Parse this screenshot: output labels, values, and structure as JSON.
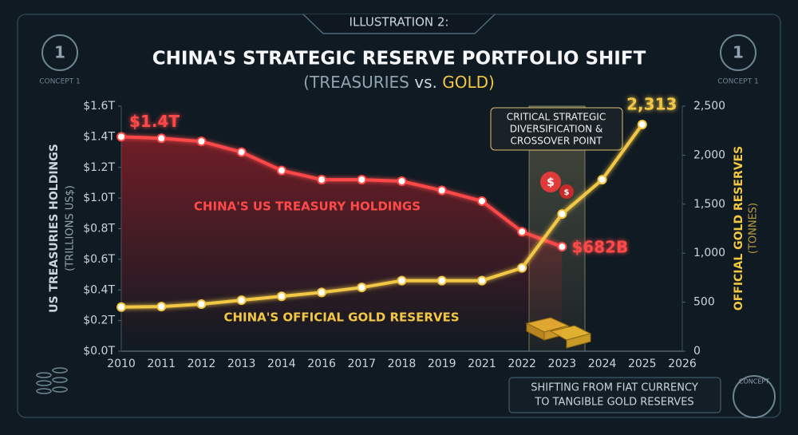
{
  "chart_data": {
    "type": "line",
    "kicker": "ILLUSTRATION 2:",
    "title": "CHINA'S STRATEGIC RESERVE PORTFOLIO SHIFT",
    "subtitle": [
      "(TREASURIES",
      "vs.",
      "GOLD)"
    ],
    "ylabel": [
      "US TREASURIES HOLDINGS",
      "(TRILLIONS US$)"
    ],
    "y2label": [
      "OFFICIAL GOLD RESERVES",
      "(TONNES)"
    ],
    "categories": [
      "2010",
      "2011",
      "2012",
      "2013",
      "2014",
      "2016",
      "2017",
      "2018",
      "2019",
      "2021",
      "2022",
      "2023",
      "2024",
      "2025",
      "2026"
    ],
    "ylim": [
      0,
      1.6
    ],
    "yticks": [
      {
        "value": 0,
        "label": "$0.0T"
      },
      {
        "value": 0.2,
        "label": "$0.2T"
      },
      {
        "value": 0.4,
        "label": "$0.4T"
      },
      {
        "value": 0.6,
        "label": "$0.6T"
      },
      {
        "value": 0.8,
        "label": "$0.8T"
      },
      {
        "value": 1.0,
        "label": "$1.0T"
      },
      {
        "value": 1.2,
        "label": "$1.2T"
      },
      {
        "value": 1.4,
        "label": "$1.4T"
      },
      {
        "value": 1.6,
        "label": "$1.6T"
      }
    ],
    "y2lim": [
      0,
      2500
    ],
    "y2ticks": [
      0,
      500,
      {
        "value": 1000,
        "label": "1,000"
      },
      {
        "value": 1500,
        "label": "1,500"
      },
      {
        "value": 2000,
        "label": "2,000"
      },
      {
        "value": 2500,
        "label": "2,500"
      }
    ],
    "series": [
      {
        "name": "CHINA'S US TREASURY HOLDINGS",
        "color": "#ff4a4a",
        "values": [
          1.4,
          1.39,
          1.37,
          1.3,
          1.18,
          1.12,
          1.12,
          1.11,
          1.05,
          0.98,
          0.78,
          0.682,
          null,
          null,
          null
        ],
        "value_labels": [
          "$1.4T",
          null,
          null,
          null,
          null,
          null,
          null,
          null,
          null,
          null,
          null,
          "$682B",
          null,
          null,
          null
        ]
      },
      {
        "name": "CHINA'S OFFICIAL GOLD RESERVES",
        "color": "#f2c744",
        "axis": "y2",
        "values": [
          450,
          455,
          480,
          520,
          560,
          600,
          650,
          720,
          720,
          720,
          850,
          1400,
          1750,
          2313,
          null
        ],
        "value_labels": [
          null,
          null,
          null,
          null,
          null,
          null,
          null,
          null,
          null,
          null,
          null,
          null,
          null,
          "2,313",
          null
        ]
      }
    ],
    "annotation": [
      "CRITICAL STRATEGIC",
      "DIVERSIFICATION &",
      "CROSSOVER POINT"
    ],
    "footer": [
      "SHIFTING FROM FIAT CURRENCY",
      "TO TANGIBLE GOLD RESERVES"
    ],
    "badges": [
      "1",
      "CONCEPT 1",
      "1",
      "CONCEPT 1",
      "CONCEPT"
    ]
  }
}
